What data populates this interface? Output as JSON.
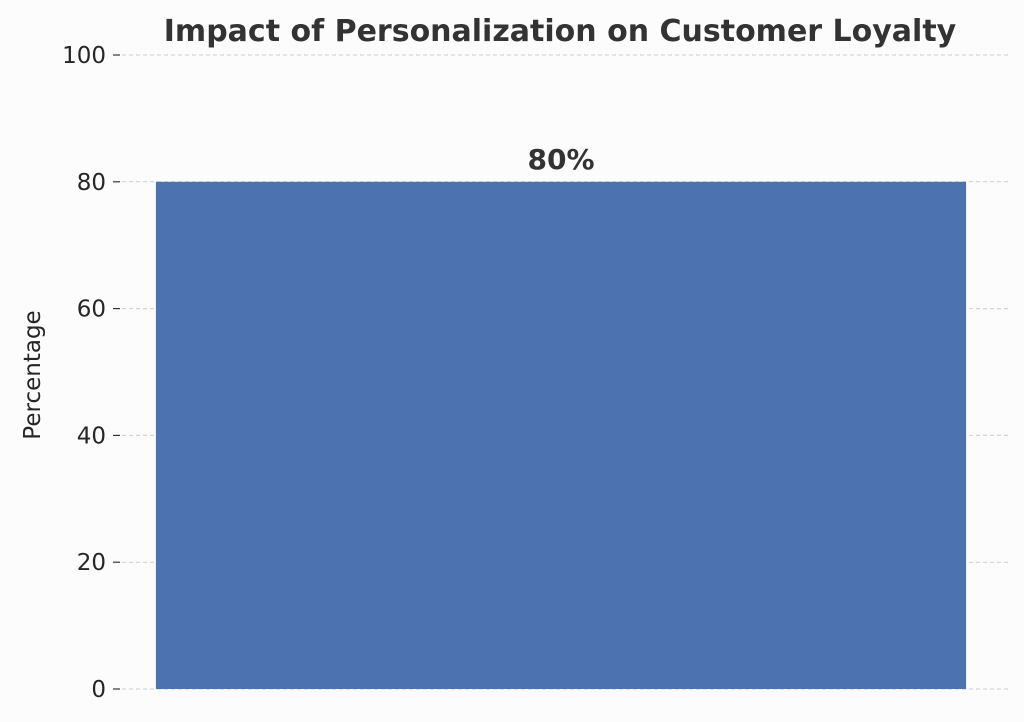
{
  "chart_data": {
    "type": "bar",
    "title": "Impact of Personalization on Customer Loyalty",
    "xlabel": "",
    "ylabel": "Percentage",
    "categories": [
      ""
    ],
    "values": [
      80
    ],
    "data_labels": [
      "80%"
    ],
    "ylim": [
      0,
      100
    ],
    "yticks": [
      0,
      20,
      40,
      60,
      80,
      100
    ],
    "ytick_labels": [
      "0",
      "20",
      "40",
      "60",
      "80",
      "100"
    ],
    "grid": "horizontal-dashed",
    "legend": "none",
    "bar_color": "#4c72b0"
  }
}
